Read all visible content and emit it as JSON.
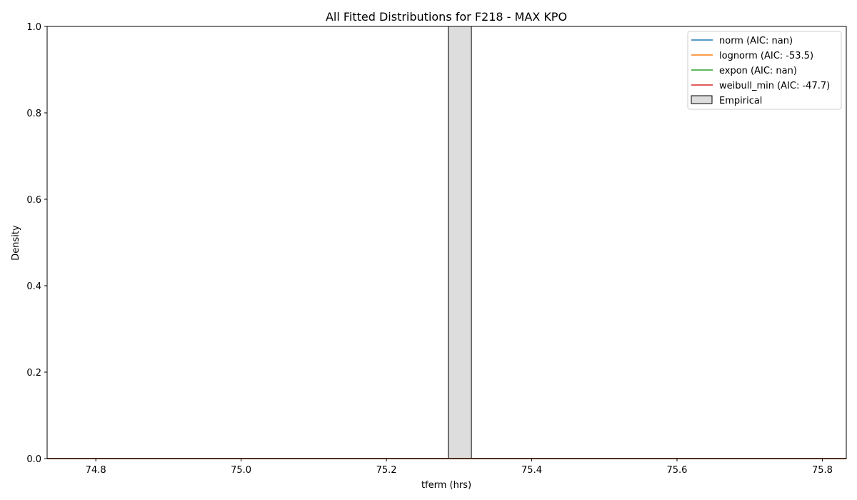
{
  "chart_data": {
    "type": "histogram",
    "title": "All Fitted Distributions for F218 - MAX KPO",
    "xlabel": "tferm (hrs)",
    "ylabel": "Density",
    "xlim": [
      74.733,
      75.833
    ],
    "ylim": [
      0,
      1.0
    ],
    "x_ticks": [
      74.8,
      75.0,
      75.2,
      75.4,
      75.6,
      75.8
    ],
    "x_tick_labels": [
      "74.8",
      "75.0",
      "75.2",
      "75.4",
      "75.6",
      "75.8"
    ],
    "y_ticks": [
      0.0,
      0.2,
      0.4,
      0.6,
      0.8,
      1.0
    ],
    "y_tick_labels": [
      "0.0",
      "0.2",
      "0.4",
      "0.6",
      "0.8",
      "1.0"
    ],
    "grid": false,
    "legend_position": "top-right",
    "series": [
      {
        "name": "norm (AIC: nan)",
        "color": "#1f77b4",
        "x": [
          74.733,
          75.833
        ],
        "y": [
          0,
          0
        ]
      },
      {
        "name": "lognorm (AIC: -53.5)",
        "color": "#ff7f0e",
        "x": [
          74.733,
          75.833
        ],
        "y": [
          0,
          0
        ]
      },
      {
        "name": "expon (AIC: nan)",
        "color": "#2ca02c",
        "x": [
          74.733,
          75.833
        ],
        "y": [
          0,
          0
        ]
      },
      {
        "name": "weibull_min (AIC: -47.7)",
        "color": "#d62728",
        "x": [
          74.733,
          75.833
        ],
        "y": [
          0,
          0
        ]
      }
    ],
    "histogram": {
      "name": "Empirical",
      "fill": "#dddddd",
      "edge": "#000000",
      "bins": [
        {
          "x0": 75.285,
          "x1": 75.317,
          "density": 1.0
        }
      ]
    }
  }
}
